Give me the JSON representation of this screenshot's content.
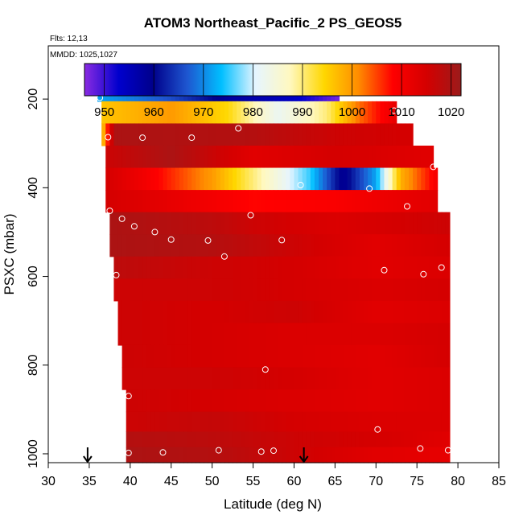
{
  "chart_data": {
    "type": "heatmap",
    "title": "ATOM3 Northeast_Pacific_2 PS_GEOS5",
    "flights_note": "Flts: 12,13",
    "dates_note": "MMDD: 1025,1027",
    "xlabel": "Latitude (deg N)",
    "ylabel": "PSXC (mbar)",
    "xlim": [
      30,
      85
    ],
    "ylim": [
      1020,
      80
    ],
    "x_ticks": [
      30,
      35,
      40,
      45,
      50,
      55,
      60,
      65,
      70,
      75,
      80,
      85
    ],
    "y_ticks": [
      200,
      400,
      600,
      800,
      1000
    ],
    "colorbar": {
      "range": [
        946,
        1022
      ],
      "ticks": [
        950,
        960,
        970,
        980,
        990,
        1000,
        1010,
        1020
      ],
      "colors": [
        "#8a2be2",
        "#0000cd",
        "#00008b",
        "#1e56d0",
        "#00bfff",
        "#e6f5ff",
        "#fff8c0",
        "#ffd700",
        "#ff8c00",
        "#ff0000",
        "#d40000",
        "#9b1b1b"
      ]
    },
    "bands": [
      {
        "p": 180,
        "x0": 36,
        "x1": 65.5,
        "stops": [
          [
            36,
            972
          ],
          [
            45,
            966
          ],
          [
            52,
            958
          ],
          [
            60,
            954
          ],
          [
            65.5,
            947
          ]
        ]
      },
      {
        "p": 230,
        "x0": 36.5,
        "x1": 72.5,
        "stops": [
          [
            36.5,
            996
          ],
          [
            45,
            1000
          ],
          [
            52,
            994
          ],
          [
            58,
            982
          ],
          [
            64,
            990
          ],
          [
            68,
            1003
          ],
          [
            72.5,
            1012
          ]
        ]
      },
      {
        "p": 280,
        "x0": 36.5,
        "x1": 74.5,
        "stops": [
          [
            36.5,
            994
          ],
          [
            38,
            1020
          ],
          [
            55,
            1019
          ],
          [
            65,
            1016
          ],
          [
            74.5,
            1015
          ]
        ]
      },
      {
        "p": 330,
        "x0": 37,
        "x1": 77,
        "stops": [
          [
            37,
            1016
          ],
          [
            45,
            1020
          ],
          [
            55,
            1013
          ],
          [
            65,
            1015
          ],
          [
            77,
            1013
          ]
        ]
      },
      {
        "p": 380,
        "x0": 37,
        "x1": 77.5,
        "stops": [
          [
            37,
            1015
          ],
          [
            42,
            1010
          ],
          [
            50,
            1000
          ],
          [
            57,
            986
          ],
          [
            62,
            975
          ],
          [
            66,
            958
          ],
          [
            70,
            972
          ],
          [
            73,
            998
          ],
          [
            77.5,
            1010
          ]
        ]
      },
      {
        "p": 430,
        "x0": 37,
        "x1": 77.5,
        "stops": [
          [
            37,
            1015
          ],
          [
            45,
            1012
          ],
          [
            55,
            1008
          ],
          [
            65,
            1009
          ],
          [
            77.5,
            1013
          ]
        ]
      },
      {
        "p": 480,
        "x0": 37.5,
        "x1": 79,
        "stops": [
          [
            37.5,
            1020
          ],
          [
            50,
            1018
          ],
          [
            55,
            1016
          ],
          [
            65,
            1014
          ],
          [
            79,
            1016
          ]
        ]
      },
      {
        "p": 530,
        "x0": 37.5,
        "x1": 79,
        "stops": [
          [
            37.5,
            1020
          ],
          [
            50,
            1019
          ],
          [
            60,
            1016
          ],
          [
            70,
            1013
          ],
          [
            79,
            1015
          ]
        ]
      },
      {
        "p": 580,
        "x0": 38,
        "x1": 79,
        "stops": [
          [
            38,
            1018
          ],
          [
            50,
            1016
          ],
          [
            60,
            1015
          ],
          [
            70,
            1013
          ],
          [
            79,
            1014
          ]
        ]
      },
      {
        "p": 630,
        "x0": 38,
        "x1": 79,
        "stops": [
          [
            38,
            1016
          ],
          [
            50,
            1016
          ],
          [
            60,
            1015
          ],
          [
            70,
            1014
          ],
          [
            79,
            1015
          ]
        ]
      },
      {
        "p": 680,
        "x0": 38.5,
        "x1": 79,
        "stops": [
          [
            38.5,
            1016
          ],
          [
            50,
            1015
          ],
          [
            60,
            1016
          ],
          [
            70,
            1013
          ],
          [
            79,
            1014
          ]
        ]
      },
      {
        "p": 730,
        "x0": 38.5,
        "x1": 79,
        "stops": [
          [
            38.5,
            1016
          ],
          [
            50,
            1015
          ],
          [
            60,
            1014
          ],
          [
            70,
            1014
          ],
          [
            79,
            1015
          ]
        ]
      },
      {
        "p": 780,
        "x0": 39,
        "x1": 79,
        "stops": [
          [
            39,
            1016
          ],
          [
            50,
            1015
          ],
          [
            60,
            1014
          ],
          [
            70,
            1013
          ],
          [
            79,
            1015
          ]
        ]
      },
      {
        "p": 830,
        "x0": 39,
        "x1": 79,
        "stops": [
          [
            39,
            1016
          ],
          [
            50,
            1016
          ],
          [
            60,
            1015
          ],
          [
            70,
            1013
          ],
          [
            79,
            1014
          ]
        ]
      },
      {
        "p": 880,
        "x0": 39.5,
        "x1": 79,
        "stops": [
          [
            39.5,
            1016
          ],
          [
            50,
            1015
          ],
          [
            60,
            1014
          ],
          [
            70,
            1013
          ],
          [
            79,
            1014
          ]
        ]
      },
      {
        "p": 930,
        "x0": 39.5,
        "x1": 79,
        "stops": [
          [
            39.5,
            1016
          ],
          [
            50,
            1017
          ],
          [
            60,
            1015
          ],
          [
            70,
            1014
          ],
          [
            79,
            1014
          ]
        ]
      },
      {
        "p": 970,
        "x0": 39.5,
        "x1": 79,
        "stops": [
          [
            39.5,
            1019
          ],
          [
            50,
            1018
          ],
          [
            60,
            1016
          ],
          [
            70,
            1015
          ],
          [
            79,
            1013
          ]
        ]
      },
      {
        "p": 1000,
        "x0": 39.5,
        "x1": 79,
        "stops": [
          [
            39.5,
            1020
          ],
          [
            50,
            1019
          ],
          [
            60,
            1016
          ],
          [
            70,
            1013
          ],
          [
            79,
            1012
          ]
        ]
      }
    ],
    "obs_points": [
      {
        "x": 36.3,
        "y": 197
      },
      {
        "x": 65.3,
        "y": 184
      },
      {
        "x": 72.2,
        "y": 226
      },
      {
        "x": 53.2,
        "y": 266
      },
      {
        "x": 37.3,
        "y": 286
      },
      {
        "x": 41.5,
        "y": 287
      },
      {
        "x": 47.5,
        "y": 287
      },
      {
        "x": 77.0,
        "y": 353
      },
      {
        "x": 60.8,
        "y": 394
      },
      {
        "x": 69.2,
        "y": 402
      },
      {
        "x": 37.5,
        "y": 452
      },
      {
        "x": 39.0,
        "y": 470
      },
      {
        "x": 40.5,
        "y": 487
      },
      {
        "x": 43.0,
        "y": 500
      },
      {
        "x": 45.0,
        "y": 517
      },
      {
        "x": 49.5,
        "y": 519
      },
      {
        "x": 58.5,
        "y": 518
      },
      {
        "x": 54.7,
        "y": 462
      },
      {
        "x": 51.5,
        "y": 555
      },
      {
        "x": 73.8,
        "y": 442
      },
      {
        "x": 71.0,
        "y": 586
      },
      {
        "x": 75.8,
        "y": 595
      },
      {
        "x": 78.0,
        "y": 580
      },
      {
        "x": 38.3,
        "y": 597
      },
      {
        "x": 56.5,
        "y": 810
      },
      {
        "x": 39.8,
        "y": 870
      },
      {
        "x": 70.2,
        "y": 945
      },
      {
        "x": 75.4,
        "y": 988
      },
      {
        "x": 78.8,
        "y": 992
      },
      {
        "x": 50.8,
        "y": 992
      },
      {
        "x": 56.0,
        "y": 995
      },
      {
        "x": 57.5,
        "y": 993
      },
      {
        "x": 44.0,
        "y": 997
      },
      {
        "x": 39.8,
        "y": 998
      }
    ],
    "arrows": [
      34.8,
      61.2
    ]
  }
}
